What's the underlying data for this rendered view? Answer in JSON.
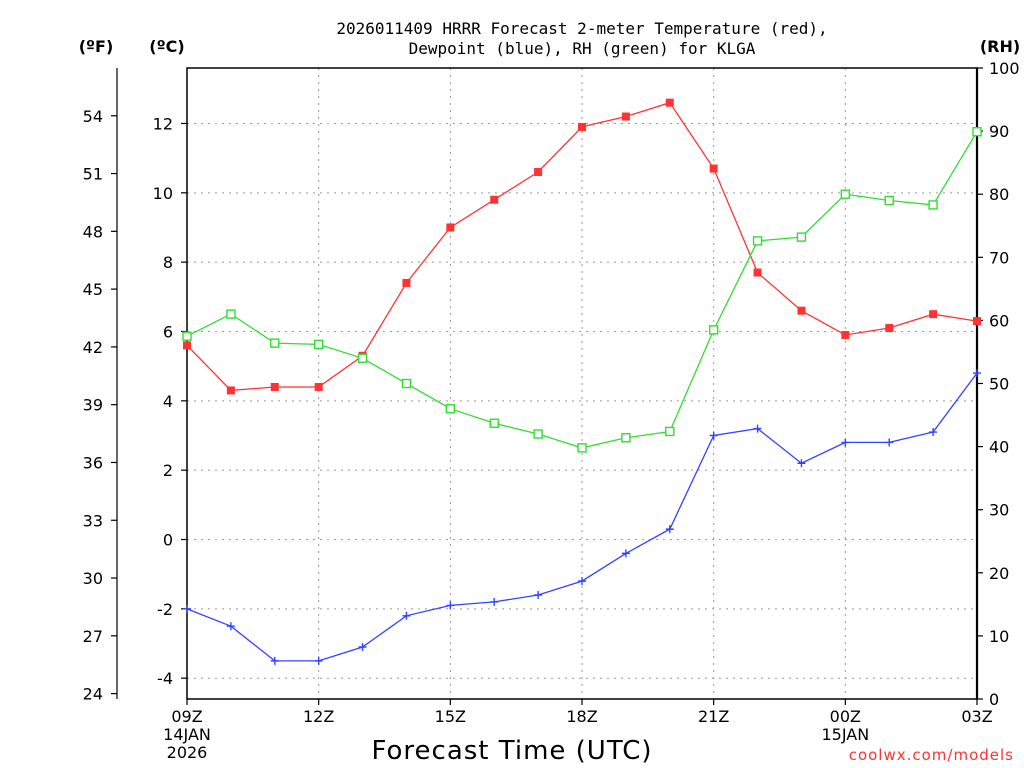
{
  "chart_data": {
    "type": "line",
    "title_line1": "2026011409 HRRR Forecast 2-meter Temperature (red),",
    "title_line2": "Dewpoint (blue), RH (green) for KLGA",
    "xlabel": "Forecast Time (UTC)",
    "credit": "coolwx.com/models",
    "left_outer_unit": "(ºF)",
    "left_inner_unit": "(ºC)",
    "right_unit": "(RH)",
    "x_hours": [
      0,
      1,
      2,
      3,
      4,
      5,
      6,
      7,
      8,
      9,
      10,
      11,
      12,
      13,
      14,
      15,
      16,
      17,
      18
    ],
    "x_ticks": [
      {
        "hour": 0,
        "line1": "09Z",
        "line2": "14JAN",
        "line3": "2026"
      },
      {
        "hour": 3,
        "line1": "12Z",
        "line2": "",
        "line3": ""
      },
      {
        "hour": 6,
        "line1": "15Z",
        "line2": "",
        "line3": ""
      },
      {
        "hour": 9,
        "line1": "18Z",
        "line2": "",
        "line3": ""
      },
      {
        "hour": 12,
        "line1": "21Z",
        "line2": "",
        "line3": ""
      },
      {
        "hour": 15,
        "line1": "00Z",
        "line2": "15JAN",
        "line3": ""
      },
      {
        "hour": 18,
        "line1": "03Z",
        "line2": "",
        "line3": ""
      }
    ],
    "celsius_axis": {
      "range": [
        -4.6,
        13.6
      ],
      "ticks": [
        "-4",
        "-2",
        "0",
        "2",
        "4",
        "6",
        "8",
        "10",
        "12"
      ]
    },
    "fahrenheit_axis": {
      "ticks": [
        "24",
        "27",
        "30",
        "33",
        "36",
        "39",
        "42",
        "45",
        "48",
        "51",
        "54"
      ]
    },
    "rh_axis": {
      "range": [
        0,
        100
      ],
      "ticks": [
        "0",
        "10",
        "20",
        "30",
        "40",
        "50",
        "60",
        "70",
        "80",
        "90",
        "100"
      ]
    },
    "series": [
      {
        "name": "2-meter Temperature",
        "color": "#ff3333",
        "unit": "C",
        "marker": "filled-square",
        "values": [
          5.6,
          4.3,
          4.4,
          4.4,
          5.3,
          7.4,
          9.0,
          9.8,
          10.6,
          11.9,
          12.2,
          12.6,
          10.7,
          7.7,
          6.6,
          5.9,
          6.1,
          6.5,
          6.3
        ]
      },
      {
        "name": "Dewpoint",
        "color": "#3344ff",
        "unit": "C",
        "marker": "plus",
        "values": [
          -2.0,
          -2.5,
          -3.5,
          -3.5,
          -3.1,
          -2.2,
          -1.9,
          -1.8,
          -1.6,
          -1.2,
          -0.4,
          0.3,
          3.0,
          3.2,
          2.2,
          2.8,
          2.8,
          3.1,
          4.8
        ]
      },
      {
        "name": "RH",
        "color": "#33dd33",
        "unit": "%",
        "marker": "open-square",
        "values": [
          57.5,
          61.0,
          56.4,
          56.2,
          54.0,
          50.0,
          46.0,
          43.7,
          42.0,
          39.8,
          41.4,
          42.4,
          58.5,
          72.6,
          73.2,
          80.0,
          79.0,
          78.3,
          89.9
        ]
      }
    ]
  }
}
